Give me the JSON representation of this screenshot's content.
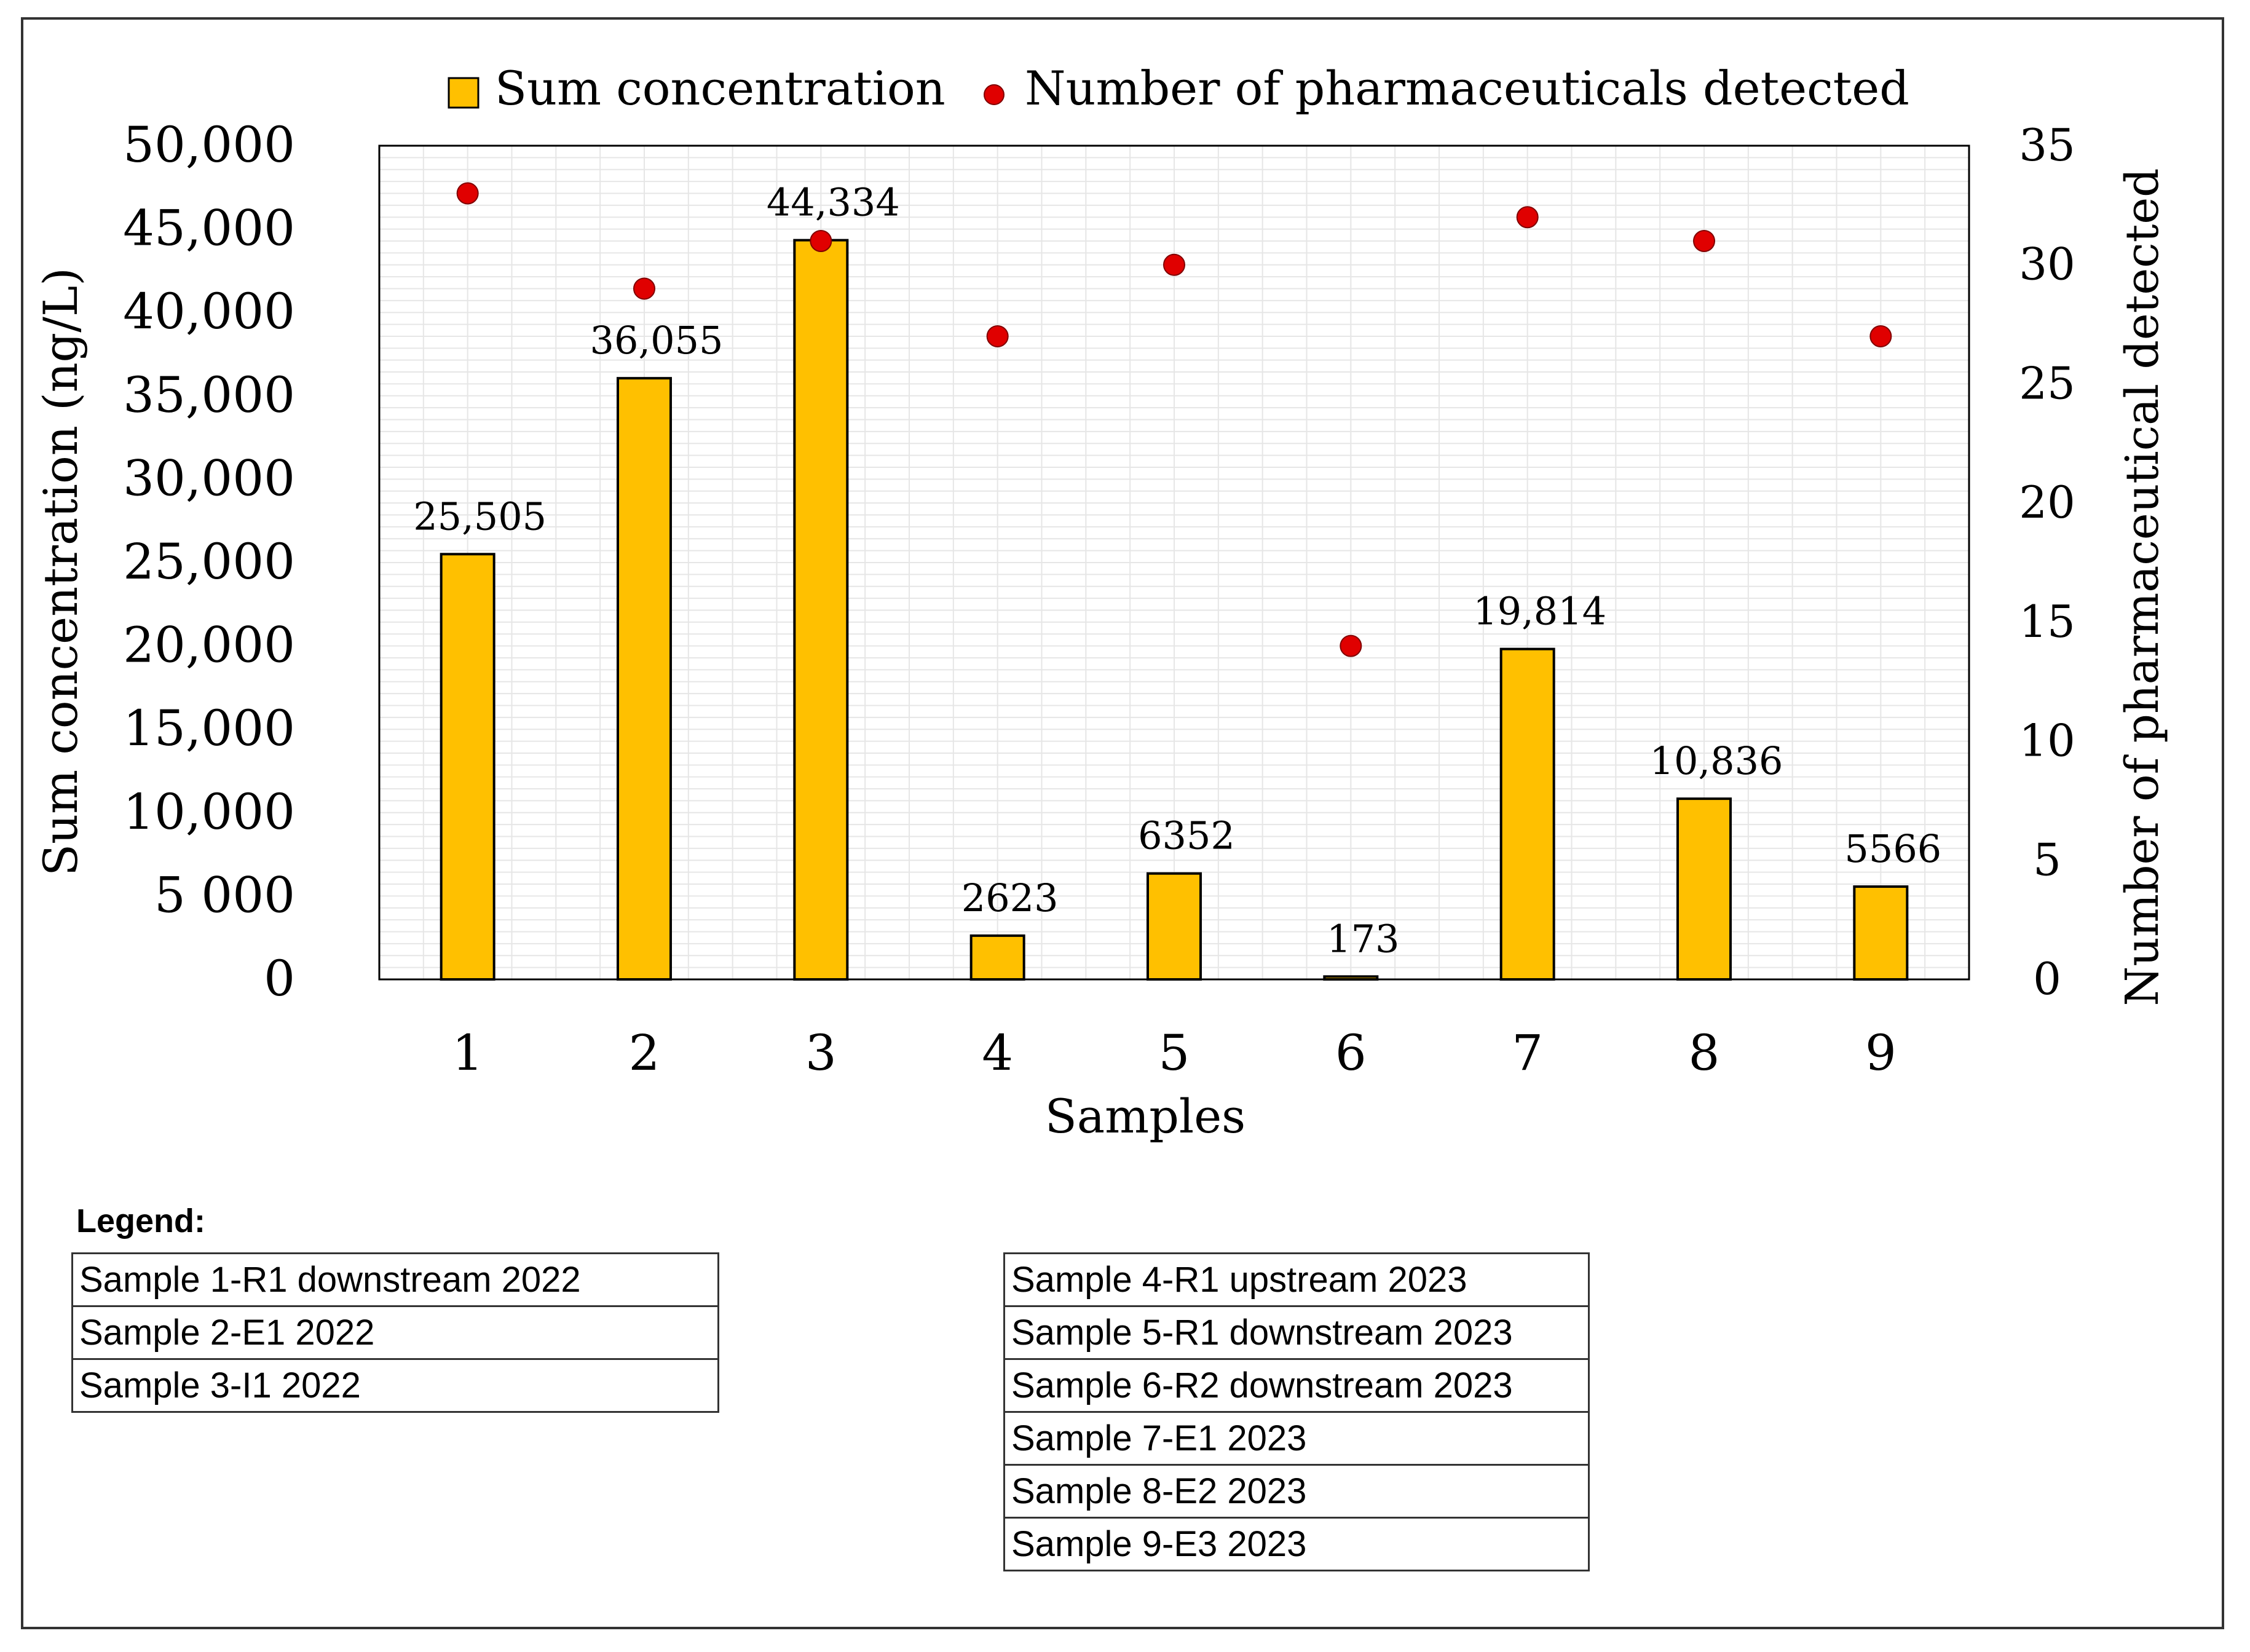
{
  "chart_data": {
    "type": "bar",
    "categories": [
      "1",
      "2",
      "3",
      "4",
      "5",
      "6",
      "7",
      "8",
      "9"
    ],
    "series": [
      {
        "name": "Sum concentration",
        "axis": "left",
        "kind": "bar",
        "color": "#FFC000",
        "values": [
          25505,
          36055,
          44334,
          2623,
          6352,
          173,
          19814,
          10836,
          5566
        ],
        "labels": [
          "25,505",
          "36,055",
          "44,334",
          "2623",
          "6352",
          "173",
          "19,814",
          "10,836",
          "5566"
        ]
      },
      {
        "name": "Number of pharmaceuticals detected",
        "axis": "right",
        "kind": "scatter",
        "color": "#E00000",
        "values": [
          33,
          29,
          31,
          27,
          30,
          14,
          32,
          31,
          27
        ]
      }
    ],
    "xlabel": "Samples",
    "ylabel": "Sum concentration (ng/L)",
    "y2label": "Number of pharmaceutical detected",
    "ylim": [
      0,
      50000
    ],
    "y2lim": [
      0,
      35
    ],
    "yticks": [
      "0",
      "5 000",
      "10,000",
      "15,000",
      "20,000",
      "25,000",
      "30,000",
      "35,000",
      "40,000",
      "45,000",
      "50,000"
    ],
    "y2ticks": [
      "0",
      "5",
      "10",
      "15",
      "20",
      "25",
      "30",
      "35"
    ],
    "legend_position": "top"
  },
  "legend": {
    "title": "Legend:",
    "left": [
      "Sample 1-R1 downstream 2022",
      "Sample 2-E1 2022",
      "Sample 3-I1 2022"
    ],
    "right": [
      "Sample 4-R1 upstream 2023",
      "Sample 5-R1 downstream 2023",
      "Sample 6-R2 downstream 2023",
      "Sample 7-E1 2023",
      "Sample 8-E2 2023",
      "Sample 9-E3 2023"
    ]
  },
  "colors": {
    "bar": "#FFC000",
    "marker": "#E00000",
    "grid": "#e6e6e6"
  }
}
